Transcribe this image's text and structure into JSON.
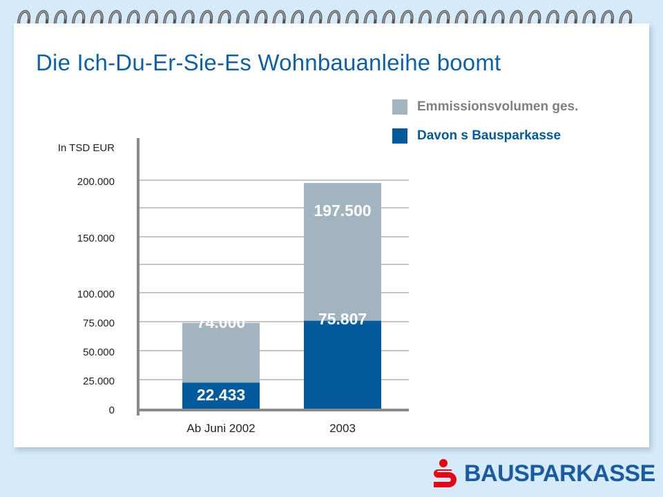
{
  "title": "Die Ich-Du-Er-Sie-Es Wohnbauanleihe boomt",
  "brand": {
    "logo_text": "BAUSPARKASSE"
  },
  "colors": {
    "total": "#a2b4c0",
    "bausparkasse": "#005a9c",
    "title": "#1060a8",
    "background": "#d6ebfa"
  },
  "chart_data": {
    "type": "bar",
    "title": "Die Ich-Du-Er-Sie-Es Wohnbauanleihe boomt",
    "ylabel": "In TSD EUR",
    "xlabel": "",
    "categories": [
      "Ab Juni 2002",
      "2003"
    ],
    "y_ticks": [
      "0",
      "25.000",
      "50.000",
      "75.000",
      "100.000",
      "150.000",
      "200.000"
    ],
    "legend_position": "top-right",
    "grid": true,
    "series": [
      {
        "name": "Emmissionsvolumen ges.",
        "values": [
          74000,
          197500
        ],
        "labels": [
          "74.000",
          "197.500"
        ],
        "color": "#a2b4c0"
      },
      {
        "name": "Davon s Bausparkasse",
        "values": [
          22433,
          75807
        ],
        "labels": [
          "22.433",
          "75.807"
        ],
        "color": "#005a9c"
      }
    ]
  }
}
